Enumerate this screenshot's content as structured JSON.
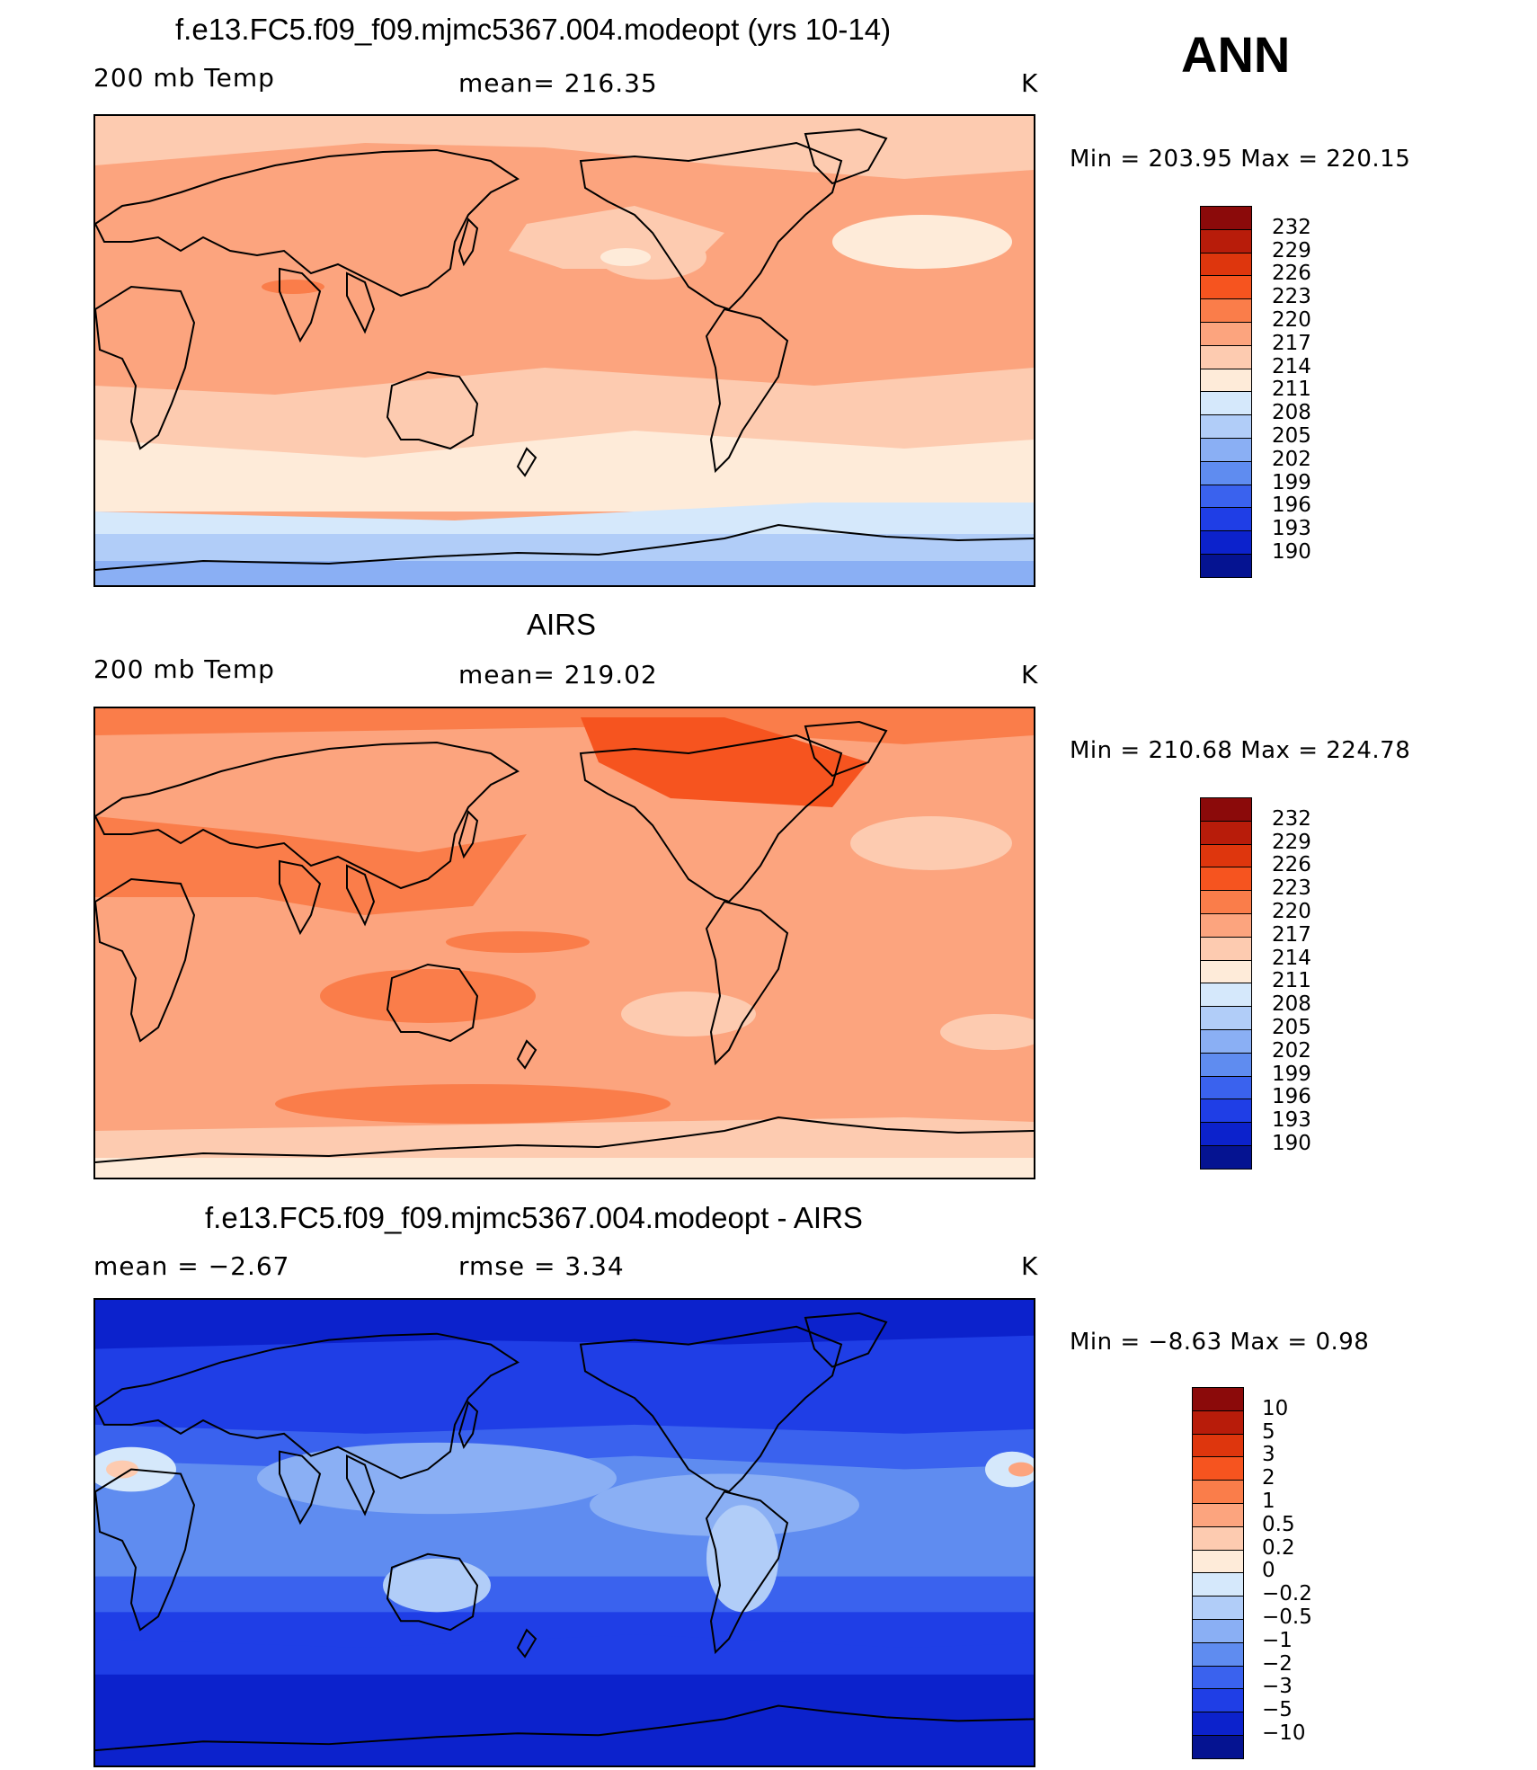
{
  "season": "ANN",
  "panels": [
    {
      "title": "f.e13.FC5.f09_f09.mjmc5367.004.modeopt (yrs 10-14)",
      "left_label": "200 mb Temp",
      "center_label": "mean=  216.35",
      "unit": "K",
      "minmax": "Min  =  203.95  Max  =  220.15",
      "palette": "abs"
    },
    {
      "title": "AIRS",
      "left_label": "200 mb Temp",
      "center_label": "mean=  219.02",
      "unit": "K",
      "minmax": "Min  =  210.68  Max  =  224.78",
      "palette": "abs"
    },
    {
      "title": "f.e13.FC5.f09_f09.mjmc5367.004.modeopt - AIRS",
      "left_label": "mean  =     −2.67",
      "center_label": "rmse  =     3.34",
      "unit": "K",
      "minmax": "Min  =    −8.63  Max  =      0.98",
      "palette": "diff"
    }
  ],
  "colorbars": {
    "abs": {
      "levels": [
        "232",
        "229",
        "226",
        "223",
        "220",
        "217",
        "214",
        "211",
        "208",
        "205",
        "202",
        "199",
        "196",
        "193",
        "190"
      ],
      "colors": [
        "#8b0a0a",
        "#b81c0a",
        "#de360d",
        "#f6541f",
        "#fa7d4a",
        "#fca47e",
        "#fdcbb0",
        "#feebd9",
        "#d5e8fb",
        "#b1cdf8",
        "#8aaff4",
        "#5f8cf0",
        "#3a62ee",
        "#1f3ee6",
        "#0c22cc",
        "#051391"
      ]
    },
    "diff": {
      "levels": [
        "10",
        "5",
        "3",
        "2",
        "1",
        "0.5",
        "0.2",
        "0",
        "−0.2",
        "−0.5",
        "−1",
        "−2",
        "−3",
        "−5",
        "−10"
      ],
      "colors": [
        "#8b0a0a",
        "#b81c0a",
        "#de360d",
        "#f6541f",
        "#fa7d4a",
        "#fca47e",
        "#fdcbb0",
        "#feebd9",
        "#d5e8fb",
        "#b1cdf8",
        "#8aaff4",
        "#5f8cf0",
        "#3a62ee",
        "#1f3ee6",
        "#0c22cc",
        "#051391"
      ]
    }
  }
}
